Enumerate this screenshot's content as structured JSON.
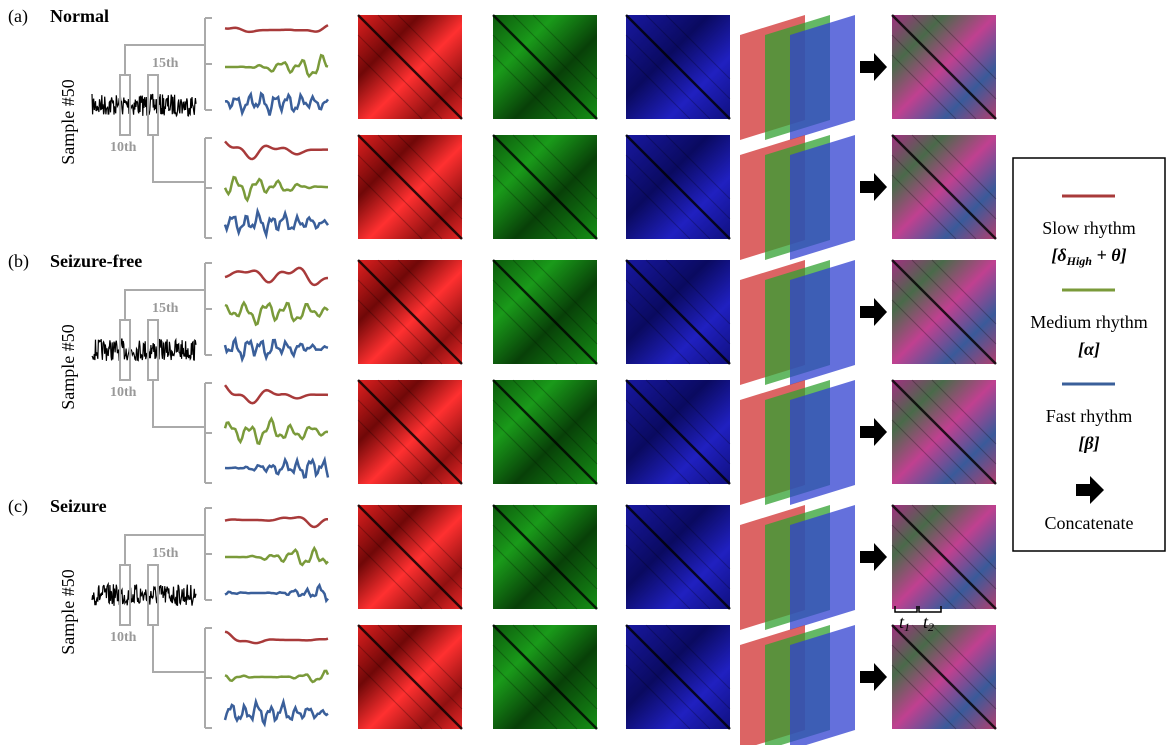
{
  "panels": [
    {
      "label": "(a)",
      "title": "Normal",
      "sample": "Sample #50",
      "top_marker": "15th",
      "bottom_marker": "10th"
    },
    {
      "label": "(b)",
      "title": "Seizure-free",
      "sample": "Sample #50",
      "top_marker": "15th",
      "bottom_marker": "10th"
    },
    {
      "label": "(c)",
      "title": "Seizure",
      "sample": "Sample #50",
      "top_marker": "15th",
      "bottom_marker": "10th"
    }
  ],
  "legend": {
    "items": [
      {
        "name": "Slow rhythm",
        "formula": {
          "pre": "[δ",
          "sub": "High",
          "post": " + θ]"
        }
      },
      {
        "name": "Medium rhythm",
        "formula": {
          "pre": "[α]",
          "sub": "",
          "post": ""
        }
      },
      {
        "name": "Fast rhythm",
        "formula": {
          "pre": "[β]",
          "sub": "",
          "post": ""
        }
      }
    ],
    "concatenate": "Concatenate"
  },
  "time_labels": [
    {
      "base": "t",
      "sub": "1"
    },
    {
      "base": "t",
      "sub": "2"
    }
  ]
}
